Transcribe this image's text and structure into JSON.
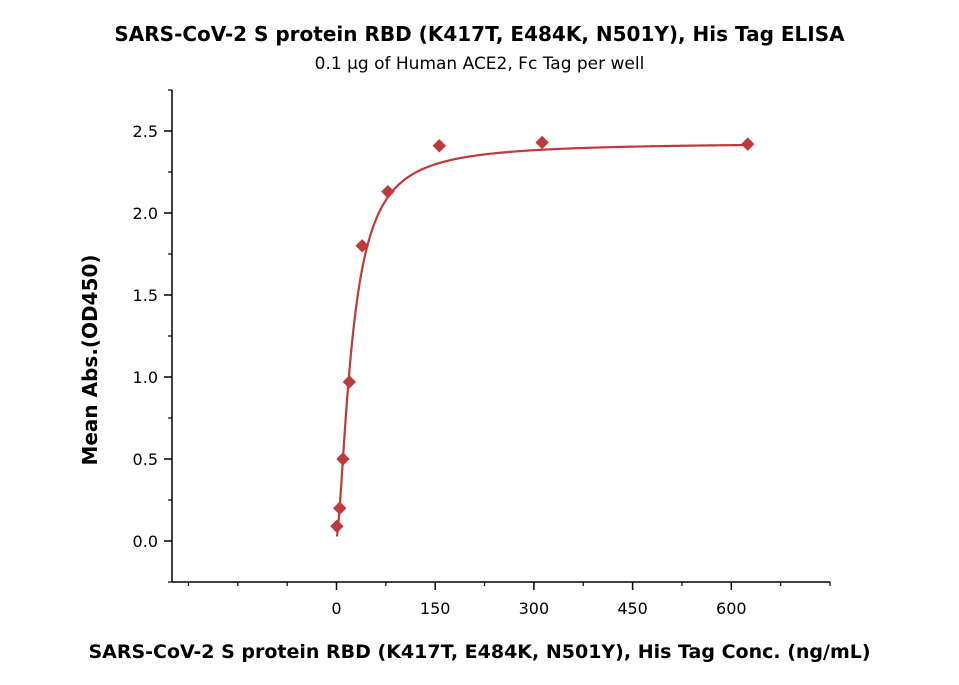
{
  "chart_data": {
    "type": "scatter",
    "title": "SARS-CoV-2 S protein RBD (K417T, E484K, N501Y), His Tag ELISA",
    "subtitle": "0.1 µg of Human ACE2, Fc Tag per well",
    "xlabel": "SARS-CoV-2 S protein RBD (K417T, E484K, N501Y), His Tag Conc. (ng/mL)",
    "ylabel": "Mean Abs.(OD450)",
    "xlim": [
      -250,
      750
    ],
    "ylim": [
      -0.25,
      2.75
    ],
    "x_ticks": [
      "0",
      "150",
      "300",
      "450",
      "600"
    ],
    "x_tick_values": [
      0,
      150,
      300,
      450,
      600
    ],
    "y_ticks": [
      "0.0",
      "0.5",
      "1.0",
      "1.5",
      "2.0",
      "2.5"
    ],
    "y_tick_values": [
      0,
      0.5,
      1.0,
      1.5,
      2.0,
      2.5
    ],
    "grid": false,
    "series": [
      {
        "marker": "diamond",
        "color": "#c0393b",
        "x": [
          0.61,
          4.88,
          9.77,
          19.53,
          39.06,
          78.13,
          156.25,
          312.5,
          625
        ],
        "y": [
          0.09,
          0.2,
          0.5,
          0.97,
          1.8,
          2.13,
          2.41,
          2.43,
          2.42
        ],
        "fit": "four-parameter logistic"
      }
    ]
  }
}
